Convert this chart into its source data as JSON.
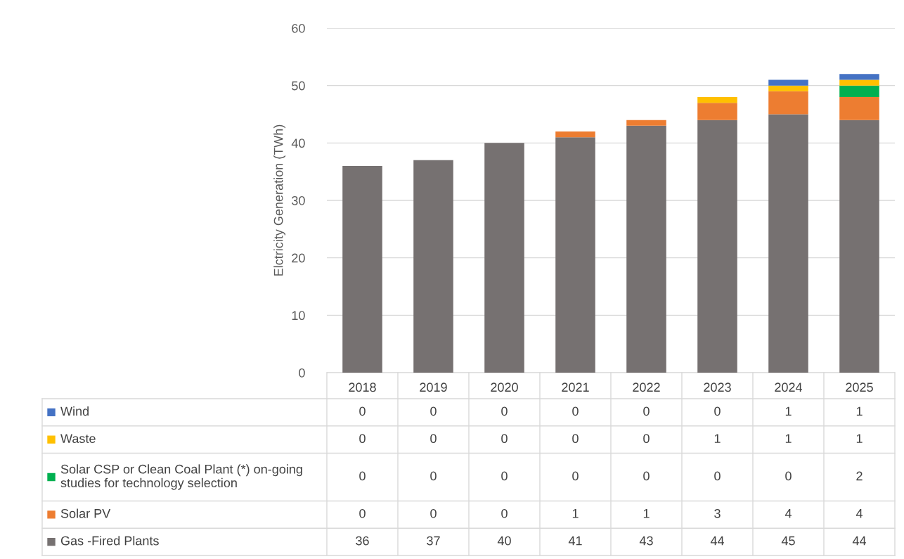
{
  "chart_data": {
    "type": "bar",
    "stacked": true,
    "ylabel": "Elctricity Generation (TWh)",
    "categories": [
      "2018",
      "2019",
      "2020",
      "2021",
      "2022",
      "2023",
      "2024",
      "2025"
    ],
    "series": [
      {
        "name": "Gas -Fired Plants",
        "color": "#767171",
        "values": [
          36,
          37,
          40,
          41,
          43,
          44,
          45,
          44
        ]
      },
      {
        "name": "Solar PV",
        "color": "#ed7d31",
        "values": [
          0,
          0,
          0,
          1,
          1,
          3,
          4,
          4
        ]
      },
      {
        "name": "Solar CSP or Clean Coal Plant (*) on-going studies for technology selection",
        "color": "#00b050",
        "values": [
          0,
          0,
          0,
          0,
          0,
          0,
          0,
          2
        ]
      },
      {
        "name": "Waste",
        "color": "#ffc000",
        "values": [
          0,
          0,
          0,
          0,
          0,
          1,
          1,
          1
        ]
      },
      {
        "name": "Wind",
        "color": "#4472c4",
        "values": [
          0,
          0,
          0,
          0,
          0,
          0,
          1,
          1
        ]
      }
    ],
    "ylim": [
      0,
      60
    ],
    "yticks": [
      0,
      10,
      20,
      30,
      40,
      50,
      60
    ],
    "grid": "y",
    "legend": "bottom",
    "data_labels": true
  }
}
